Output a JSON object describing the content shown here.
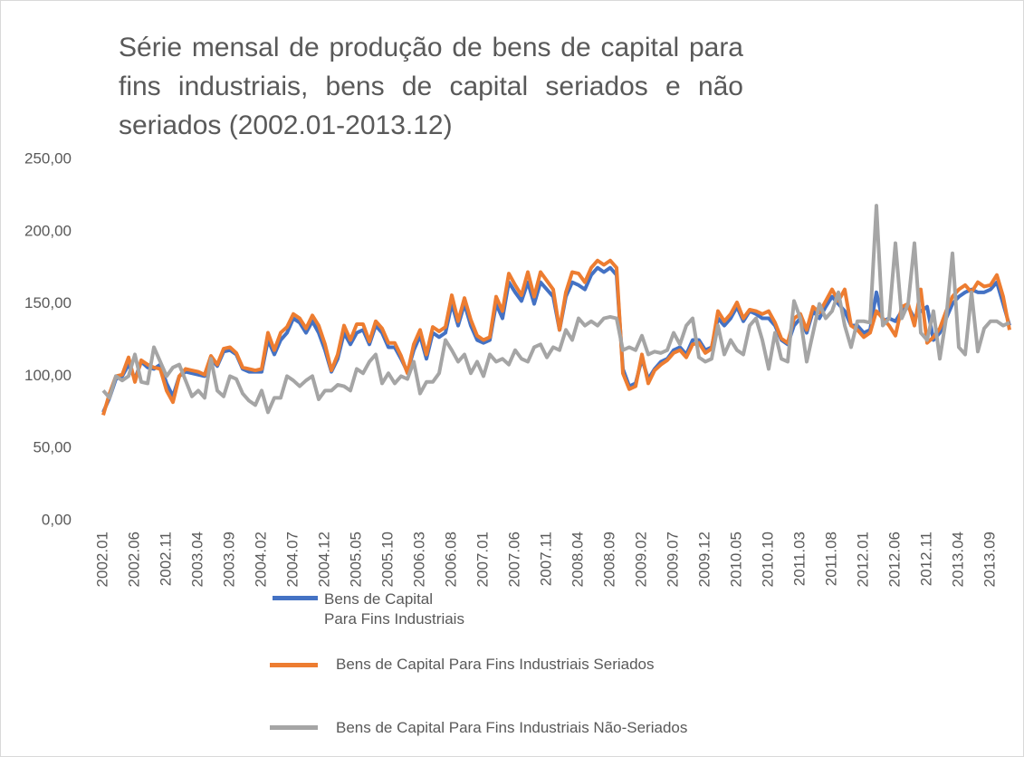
{
  "chart_data": {
    "type": "line",
    "title": "Série mensal de produção de bens de capital para fins industriais, bens de capital seriados e não seriados (2002.01-2013.12)",
    "categories": [
      "2002.01",
      null,
      null,
      null,
      null,
      "2002.06",
      null,
      null,
      null,
      null,
      "2002.11",
      null,
      null,
      null,
      null,
      "2003.04",
      null,
      null,
      null,
      null,
      "2003.09",
      null,
      null,
      null,
      null,
      "2004.02",
      null,
      null,
      null,
      null,
      "2004.07",
      null,
      null,
      null,
      null,
      "2004.12",
      null,
      null,
      null,
      null,
      "2005.05",
      null,
      null,
      null,
      null,
      "2005.10",
      null,
      null,
      null,
      null,
      "2006.03",
      null,
      null,
      null,
      null,
      "2006.08",
      null,
      null,
      null,
      null,
      "2007.01",
      null,
      null,
      null,
      null,
      "2007.06",
      null,
      null,
      null,
      null,
      "2007.11",
      null,
      null,
      null,
      null,
      "2008.04",
      null,
      null,
      null,
      null,
      "2008.09",
      null,
      null,
      null,
      null,
      "2009.02",
      null,
      null,
      null,
      null,
      "2009.07",
      null,
      null,
      null,
      null,
      "2009.12",
      null,
      null,
      null,
      null,
      "2010.05",
      null,
      null,
      null,
      null,
      "2010.10",
      null,
      null,
      null,
      null,
      "2011.03",
      null,
      null,
      null,
      null,
      "2011.08",
      null,
      null,
      null,
      null,
      "2012.01",
      null,
      null,
      null,
      null,
      "2012.06",
      null,
      null,
      null,
      null,
      "2012.11",
      null,
      null,
      null,
      null,
      "2013.04",
      null,
      null,
      null,
      null,
      "2013.09",
      null,
      null,
      null
    ],
    "series": [
      {
        "name": "Bens de Capital Para Fins Industriais",
        "color": "#4472c4",
        "values": [
          75,
          85,
          98,
          100,
          108,
          98,
          110,
          106,
          105,
          108,
          95,
          86,
          100,
          103,
          102,
          101,
          100,
          112,
          107,
          117,
          118,
          115,
          105,
          103,
          103,
          103,
          125,
          115,
          125,
          130,
          140,
          137,
          130,
          138,
          130,
          118,
          103,
          112,
          130,
          122,
          130,
          132,
          122,
          135,
          130,
          120,
          120,
          112,
          103,
          118,
          128,
          112,
          130,
          127,
          130,
          150,
          135,
          150,
          135,
          125,
          123,
          125,
          150,
          140,
          165,
          158,
          152,
          165,
          150,
          165,
          160,
          155,
          132,
          155,
          165,
          163,
          160,
          170,
          175,
          172,
          175,
          170,
          105,
          93,
          95,
          112,
          98,
          105,
          110,
          112,
          118,
          120,
          115,
          125,
          125,
          118,
          120,
          140,
          135,
          140,
          148,
          138,
          145,
          143,
          140,
          140,
          135,
          125,
          122,
          135,
          140,
          130,
          145,
          140,
          148,
          155,
          150,
          145,
          135,
          135,
          130,
          132,
          158,
          138,
          140,
          138,
          145,
          148,
          140,
          145,
          148,
          125,
          130,
          140,
          150,
          155,
          158,
          160,
          158,
          158,
          160,
          165,
          150,
          135
        ]
      },
      {
        "name": "Bens de Capital Para Fins Industriais Seriados",
        "color": "#ed7d31",
        "values": [
          73,
          88,
          100,
          101,
          113,
          96,
          111,
          108,
          106,
          105,
          90,
          82,
          100,
          105,
          104,
          103,
          101,
          114,
          108,
          119,
          120,
          116,
          106,
          105,
          104,
          105,
          130,
          118,
          130,
          134,
          143,
          140,
          133,
          142,
          135,
          122,
          104,
          115,
          135,
          125,
          136,
          136,
          124,
          138,
          133,
          123,
          123,
          114,
          102,
          122,
          132,
          115,
          134,
          131,
          134,
          156,
          138,
          154,
          139,
          128,
          125,
          127,
          155,
          145,
          171,
          163,
          156,
          172,
          155,
          172,
          166,
          160,
          132,
          158,
          172,
          171,
          165,
          175,
          180,
          177,
          180,
          175,
          102,
          91,
          93,
          115,
          95,
          104,
          108,
          111,
          116,
          118,
          113,
          122,
          123,
          116,
          119,
          145,
          138,
          143,
          151,
          140,
          146,
          145,
          143,
          145,
          137,
          126,
          123,
          140,
          143,
          132,
          148,
          144,
          152,
          160,
          152,
          160,
          135,
          132,
          127,
          130,
          145,
          140,
          135,
          128,
          148,
          150,
          135,
          160,
          123,
          127,
          133,
          145,
          155,
          160,
          163,
          158,
          165,
          162,
          163,
          170,
          155,
          132
        ]
      },
      {
        "name": "Bens de Capital Para Fins Industriais Não-Seriados",
        "color": "#a5a5a5",
        "values": [
          90,
          85,
          100,
          97,
          100,
          115,
          96,
          95,
          120,
          110,
          100,
          106,
          108,
          97,
          86,
          90,
          85,
          112,
          90,
          86,
          100,
          98,
          88,
          83,
          80,
          90,
          75,
          85,
          85,
          100,
          97,
          93,
          97,
          100,
          84,
          90,
          90,
          94,
          93,
          90,
          105,
          102,
          110,
          115,
          95,
          102,
          95,
          100,
          98,
          110,
          88,
          96,
          96,
          102,
          125,
          118,
          110,
          115,
          102,
          110,
          100,
          115,
          110,
          112,
          108,
          118,
          112,
          110,
          120,
          122,
          113,
          120,
          118,
          132,
          125,
          140,
          135,
          138,
          135,
          140,
          141,
          140,
          118,
          120,
          118,
          128,
          115,
          117,
          116,
          118,
          130,
          122,
          135,
          140,
          113,
          110,
          112,
          135,
          115,
          125,
          118,
          115,
          135,
          140,
          125,
          105,
          130,
          112,
          110,
          152,
          140,
          110,
          130,
          150,
          140,
          145,
          158,
          135,
          120,
          138,
          138,
          137,
          218,
          135,
          140,
          192,
          140,
          150,
          192,
          130,
          125,
          145,
          112,
          140,
          185,
          120,
          115,
          158,
          117,
          133,
          138,
          138,
          135,
          137
        ]
      }
    ],
    "ylim": [
      0,
      250
    ],
    "yticks": [
      {
        "value": 0,
        "label": "0,00"
      },
      {
        "value": 50,
        "label": "50,00"
      },
      {
        "value": 100,
        "label": "100,00"
      },
      {
        "value": 150,
        "label": "150,00"
      },
      {
        "value": 200,
        "label": "200,00"
      },
      {
        "value": 250,
        "label": "250,00"
      }
    ],
    "grid": false
  }
}
